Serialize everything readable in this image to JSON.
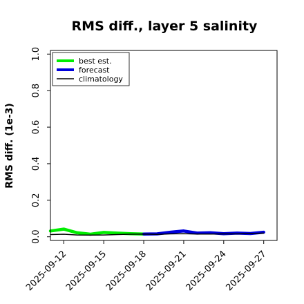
{
  "chart_data": {
    "type": "line",
    "title": "RMS diff., layer 5 salinity",
    "xlabel": "",
    "ylabel": "RMS diff. (1e-3)",
    "ylim": [
      -0.02,
      1.02
    ],
    "yticks": [
      0.0,
      0.2,
      0.4,
      0.6,
      0.8,
      1.0
    ],
    "ytick_labels": [
      "0.0",
      "0.2",
      "0.4",
      "0.6",
      "0.8",
      "1.0"
    ],
    "xticks": [
      "2025-09-12",
      "2025-09-15",
      "2025-09-18",
      "2025-09-21",
      "2025-09-24",
      "2025-09-27"
    ],
    "xtick_colors": [
      "#000000",
      "#000000",
      "#228B22",
      "#000000",
      "#000000",
      "#000000"
    ],
    "grid": false,
    "legend_position": "top-left",
    "series": [
      {
        "name": "best est.",
        "color": "#00ee00",
        "x": [
          "2025-09-11",
          "2025-09-12",
          "2025-09-13",
          "2025-09-14",
          "2025-09-15",
          "2025-09-16",
          "2025-09-17",
          "2025-09-18"
        ],
        "values": [
          0.032,
          0.042,
          0.022,
          0.014,
          0.024,
          0.02,
          0.017,
          0.015
        ]
      },
      {
        "name": "forecast",
        "color": "#0000dd",
        "x": [
          "2025-09-18",
          "2025-09-19",
          "2025-09-20",
          "2025-09-21",
          "2025-09-22",
          "2025-09-23",
          "2025-09-24",
          "2025-09-25",
          "2025-09-26",
          "2025-09-27"
        ],
        "values": [
          0.015,
          0.016,
          0.025,
          0.032,
          0.02,
          0.022,
          0.017,
          0.02,
          0.018,
          0.025
        ]
      },
      {
        "name": "climatology",
        "color": "#000000",
        "x": [
          "2025-09-11",
          "2025-09-12",
          "2025-09-13",
          "2025-09-14",
          "2025-09-15",
          "2025-09-16",
          "2025-09-17",
          "2025-09-18",
          "2025-09-19",
          "2025-09-20",
          "2025-09-21",
          "2025-09-22",
          "2025-09-23",
          "2025-09-24",
          "2025-09-25",
          "2025-09-26",
          "2025-09-27"
        ],
        "values": [
          0.012,
          0.014,
          0.01,
          0.009,
          0.01,
          0.012,
          0.014,
          0.015,
          0.013,
          0.016,
          0.017,
          0.015,
          0.015,
          0.016,
          0.016,
          0.018,
          0.02
        ]
      }
    ]
  }
}
